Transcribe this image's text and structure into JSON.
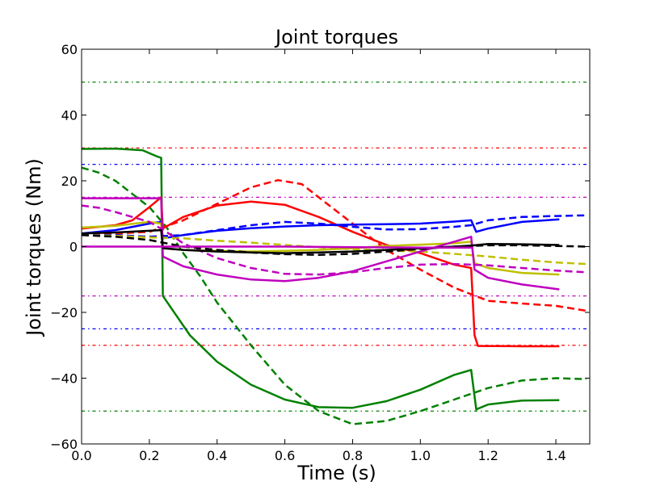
{
  "chart_data": {
    "type": "line",
    "title": "Joint torques",
    "xlabel": "Time (s)",
    "ylabel": "Joint torques (Nm)",
    "xlim": [
      0.0,
      1.5
    ],
    "ylim": [
      -60,
      60
    ],
    "xticks": [
      "0.0",
      "0.2",
      "0.4",
      "0.6",
      "0.8",
      "1.0",
      "1.2",
      "1.4"
    ],
    "yticks": [
      "60",
      "40",
      "20",
      "0",
      "−20",
      "−40",
      "−60"
    ],
    "grid": false,
    "legend": "none",
    "limit_lines": [
      {
        "y": 50,
        "color": "#008000",
        "style": "dashdot"
      },
      {
        "y": -50,
        "color": "#008000",
        "style": "dashdot"
      },
      {
        "y": 30,
        "color": "#ff0000",
        "style": "dashdot"
      },
      {
        "y": -30,
        "color": "#ff0000",
        "style": "dashdot"
      },
      {
        "y": 25,
        "color": "#0000ff",
        "style": "dashdot"
      },
      {
        "y": -25,
        "color": "#0000ff",
        "style": "dashdot"
      },
      {
        "y": 15,
        "color": "#bf00bf",
        "style": "dashdot"
      },
      {
        "y": -15,
        "color": "#bf00bf",
        "style": "dashdot"
      }
    ],
    "series": [
      {
        "color": "#008000",
        "style": "solid",
        "points": [
          [
            0.0,
            29.7
          ],
          [
            0.1,
            29.8
          ],
          [
            0.18,
            29.3
          ],
          [
            0.22,
            27.5
          ],
          [
            0.235,
            27
          ],
          [
            0.24,
            -15
          ],
          [
            0.28,
            -21
          ],
          [
            0.32,
            -27
          ],
          [
            0.4,
            -35
          ],
          [
            0.5,
            -42
          ],
          [
            0.6,
            -46.5
          ],
          [
            0.7,
            -48.8
          ],
          [
            0.8,
            -49
          ],
          [
            0.9,
            -47
          ],
          [
            1.0,
            -43.5
          ],
          [
            1.1,
            -39
          ],
          [
            1.15,
            -37.5
          ],
          [
            1.165,
            -49.5
          ],
          [
            1.2,
            -48
          ],
          [
            1.3,
            -46.8
          ],
          [
            1.41,
            -46.7
          ]
        ]
      },
      {
        "color": "#008000",
        "style": "dashed",
        "points": [
          [
            0.0,
            24
          ],
          [
            0.05,
            22.5
          ],
          [
            0.1,
            20
          ],
          [
            0.15,
            16
          ],
          [
            0.2,
            12
          ],
          [
            0.25,
            6
          ],
          [
            0.3,
            -2
          ],
          [
            0.35,
            -9
          ],
          [
            0.4,
            -17
          ],
          [
            0.5,
            -30
          ],
          [
            0.6,
            -42
          ],
          [
            0.7,
            -50
          ],
          [
            0.8,
            -54
          ],
          [
            0.9,
            -53
          ],
          [
            1.0,
            -50
          ],
          [
            1.1,
            -46.5
          ],
          [
            1.2,
            -43
          ],
          [
            1.3,
            -40.7
          ],
          [
            1.4,
            -40
          ],
          [
            1.49,
            -40.3
          ]
        ]
      },
      {
        "color": "#ff0000",
        "style": "solid",
        "points": [
          [
            0.0,
            5.5
          ],
          [
            0.1,
            6.5
          ],
          [
            0.15,
            8
          ],
          [
            0.2,
            12
          ],
          [
            0.235,
            15
          ],
          [
            0.24,
            5.5
          ],
          [
            0.3,
            9
          ],
          [
            0.4,
            12.5
          ],
          [
            0.5,
            13.7
          ],
          [
            0.6,
            12.7
          ],
          [
            0.7,
            9
          ],
          [
            0.8,
            4.5
          ],
          [
            0.9,
            0.5
          ],
          [
            1.0,
            -2
          ],
          [
            1.1,
            -5.5
          ],
          [
            1.15,
            -6.5
          ],
          [
            1.16,
            -27
          ],
          [
            1.17,
            -30.2
          ],
          [
            1.3,
            -30.3
          ],
          [
            1.41,
            -30.3
          ]
        ]
      },
      {
        "color": "#ff0000",
        "style": "dashed",
        "points": [
          [
            0.0,
            3.5
          ],
          [
            0.1,
            4
          ],
          [
            0.2,
            4.5
          ],
          [
            0.3,
            8
          ],
          [
            0.4,
            13
          ],
          [
            0.5,
            18
          ],
          [
            0.58,
            20.2
          ],
          [
            0.65,
            19
          ],
          [
            0.7,
            15
          ],
          [
            0.8,
            7
          ],
          [
            0.9,
            -1
          ],
          [
            1.0,
            -7
          ],
          [
            1.1,
            -12.5
          ],
          [
            1.2,
            -16.5
          ],
          [
            1.3,
            -17.3
          ],
          [
            1.4,
            -18
          ],
          [
            1.49,
            -19.5
          ]
        ]
      },
      {
        "color": "#0000ff",
        "style": "solid",
        "points": [
          [
            0.0,
            4
          ],
          [
            0.1,
            5
          ],
          [
            0.2,
            7
          ],
          [
            0.235,
            7.5
          ],
          [
            0.24,
            2.5
          ],
          [
            0.3,
            3.5
          ],
          [
            0.4,
            4.8
          ],
          [
            0.5,
            5.6
          ],
          [
            0.6,
            6.1
          ],
          [
            0.7,
            6.5
          ],
          [
            0.8,
            6.7
          ],
          [
            0.9,
            6.8
          ],
          [
            1.0,
            7
          ],
          [
            1.1,
            7.6
          ],
          [
            1.15,
            8
          ],
          [
            1.165,
            4.5
          ],
          [
            1.2,
            5.5
          ],
          [
            1.3,
            7.5
          ],
          [
            1.41,
            8.3
          ]
        ]
      },
      {
        "color": "#0000ff",
        "style": "dashed",
        "points": [
          [
            0.0,
            3.5
          ],
          [
            0.1,
            3.5
          ],
          [
            0.2,
            3
          ],
          [
            0.3,
            3.5
          ],
          [
            0.4,
            5
          ],
          [
            0.5,
            6.5
          ],
          [
            0.6,
            7.5
          ],
          [
            0.7,
            7
          ],
          [
            0.8,
            6
          ],
          [
            0.9,
            5.2
          ],
          [
            1.0,
            5.3
          ],
          [
            1.1,
            6
          ],
          [
            1.15,
            6.5
          ],
          [
            1.2,
            8
          ],
          [
            1.3,
            9
          ],
          [
            1.4,
            9.3
          ],
          [
            1.49,
            9.5
          ]
        ]
      },
      {
        "color": "#bfbf00",
        "style": "solid",
        "points": [
          [
            0.0,
            5.8
          ],
          [
            0.1,
            6.3
          ],
          [
            0.2,
            7.5
          ],
          [
            0.235,
            7
          ],
          [
            0.24,
            -0.5
          ],
          [
            0.3,
            -1
          ],
          [
            0.4,
            -1.3
          ],
          [
            0.5,
            -1.5
          ],
          [
            0.6,
            -1.3
          ],
          [
            0.7,
            -1
          ],
          [
            0.8,
            -0.5
          ],
          [
            0.9,
            0.2
          ],
          [
            1.0,
            0.6
          ],
          [
            1.1,
            1
          ],
          [
            1.15,
            1.5
          ],
          [
            1.16,
            -5
          ],
          [
            1.2,
            -6.5
          ],
          [
            1.3,
            -8
          ],
          [
            1.41,
            -8.5
          ]
        ]
      },
      {
        "color": "#bfbf00",
        "style": "dashed",
        "points": [
          [
            0.0,
            3.5
          ],
          [
            0.1,
            3.3
          ],
          [
            0.2,
            2.8
          ],
          [
            0.3,
            2.5
          ],
          [
            0.4,
            1.8
          ],
          [
            0.5,
            1.2
          ],
          [
            0.6,
            0.5
          ],
          [
            0.7,
            -0.2
          ],
          [
            0.8,
            -0.8
          ],
          [
            0.9,
            -1.2
          ],
          [
            1.0,
            -1.5
          ],
          [
            1.1,
            -2.2
          ],
          [
            1.2,
            -3
          ],
          [
            1.3,
            -4
          ],
          [
            1.4,
            -4.8
          ],
          [
            1.49,
            -5.3
          ]
        ]
      },
      {
        "color": "#bf00bf",
        "style": "solid",
        "points": [
          [
            0.0,
            14.7
          ],
          [
            0.1,
            14.7
          ],
          [
            0.2,
            14.7
          ],
          [
            0.235,
            14.7
          ],
          [
            0.24,
            -3
          ],
          [
            0.3,
            -6
          ],
          [
            0.4,
            -8.5
          ],
          [
            0.5,
            -10
          ],
          [
            0.6,
            -10.5
          ],
          [
            0.7,
            -9.5
          ],
          [
            0.8,
            -7.5
          ],
          [
            0.9,
            -4.5
          ],
          [
            1.0,
            -1.5
          ],
          [
            1.1,
            1.5
          ],
          [
            1.15,
            3
          ],
          [
            1.16,
            -7
          ],
          [
            1.2,
            -9.5
          ],
          [
            1.3,
            -11.5
          ],
          [
            1.41,
            -13
          ]
        ]
      },
      {
        "color": "#bf00bf",
        "style": "dashed",
        "points": [
          [
            0.0,
            12.5
          ],
          [
            0.05,
            11.8
          ],
          [
            0.1,
            10.5
          ],
          [
            0.15,
            9
          ],
          [
            0.2,
            7.5
          ],
          [
            0.25,
            4.5
          ],
          [
            0.3,
            1
          ],
          [
            0.4,
            -3.5
          ],
          [
            0.5,
            -6.5
          ],
          [
            0.6,
            -8.3
          ],
          [
            0.7,
            -8.5
          ],
          [
            0.8,
            -7.8
          ],
          [
            0.9,
            -6.5
          ],
          [
            1.0,
            -5.5
          ],
          [
            1.1,
            -5.3
          ],
          [
            1.2,
            -5.7
          ],
          [
            1.3,
            -6.5
          ],
          [
            1.4,
            -7.3
          ],
          [
            1.49,
            -7.8
          ]
        ]
      },
      {
        "color": "#000000",
        "style": "solid",
        "points": [
          [
            0.0,
            4
          ],
          [
            0.1,
            4.3
          ],
          [
            0.2,
            4.8
          ],
          [
            0.235,
            5
          ],
          [
            0.24,
            -0.5
          ],
          [
            0.3,
            -1
          ],
          [
            0.4,
            -1.5
          ],
          [
            0.5,
            -1.8
          ],
          [
            0.6,
            -2
          ],
          [
            0.7,
            -1.8
          ],
          [
            0.8,
            -1.5
          ],
          [
            0.9,
            -1
          ],
          [
            1.0,
            -0.5
          ],
          [
            1.1,
            0
          ],
          [
            1.15,
            0.3
          ],
          [
            1.2,
            0.8
          ],
          [
            1.3,
            0.7
          ],
          [
            1.41,
            0.5
          ]
        ]
      },
      {
        "color": "#000000",
        "style": "dashed",
        "points": [
          [
            0.0,
            3.5
          ],
          [
            0.1,
            3
          ],
          [
            0.2,
            2
          ],
          [
            0.3,
            0
          ],
          [
            0.4,
            -1
          ],
          [
            0.5,
            -1.8
          ],
          [
            0.6,
            -2.3
          ],
          [
            0.7,
            -2.5
          ],
          [
            0.8,
            -2.2
          ],
          [
            0.9,
            -1.5
          ],
          [
            1.0,
            -0.7
          ],
          [
            1.1,
            0
          ],
          [
            1.2,
            0.4
          ],
          [
            1.3,
            0.4
          ],
          [
            1.4,
            0.2
          ],
          [
            1.49,
            0
          ]
        ]
      },
      {
        "color": "#bf00bf",
        "style": "solid",
        "points": [
          [
            0.0,
            0
          ],
          [
            0.2,
            0
          ],
          [
            0.4,
            0
          ],
          [
            0.6,
            0
          ],
          [
            0.8,
            -0.2
          ],
          [
            1.0,
            -0.3
          ],
          [
            1.15,
            -0.3
          ]
        ]
      }
    ]
  }
}
